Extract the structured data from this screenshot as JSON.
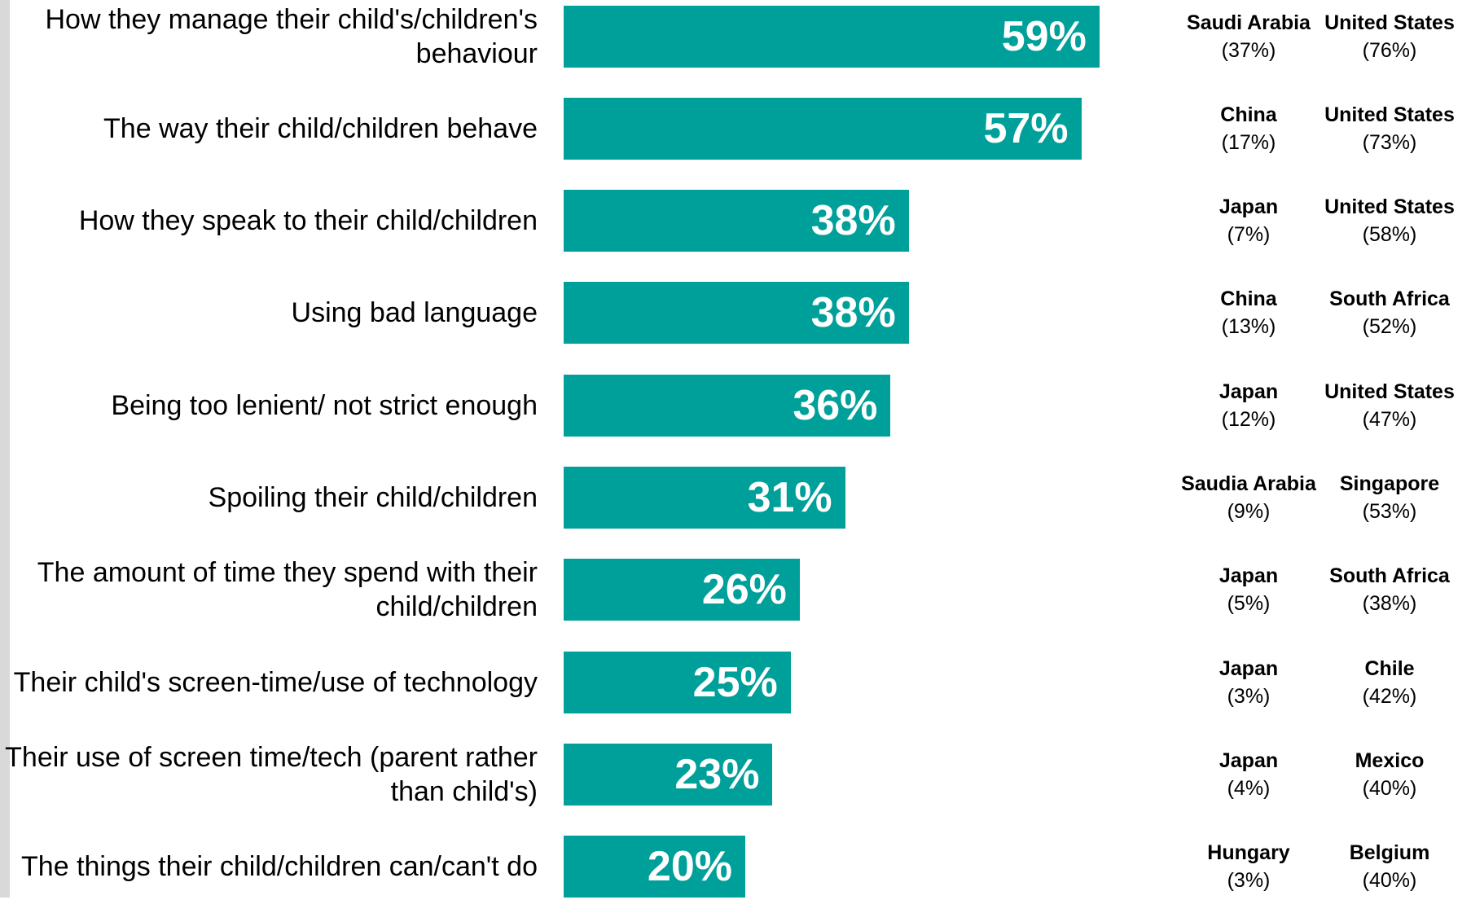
{
  "chart_data": {
    "type": "bar",
    "orientation": "horizontal",
    "xlim": [
      0,
      100
    ],
    "categories": [
      "How they manage their child's/children's behaviour",
      "The way their child/children behave",
      "How they speak to their child/children",
      "Using bad language",
      "Being too lenient/ not strict enough",
      "Spoiling their child/children",
      "The amount of time they spend with their child/children",
      "Their child's screen-time/use of technology",
      "Their use of screen time/tech (parent rather than child's)",
      "The things their child/children can/can't do"
    ],
    "values": [
      59,
      57,
      38,
      38,
      36,
      31,
      26,
      25,
      23,
      20
    ],
    "value_labels": [
      "59%",
      "57%",
      "38%",
      "38%",
      "36%",
      "31%",
      "26%",
      "25%",
      "23%",
      "20%"
    ],
    "bar_color": "#00a09a",
    "lowest_country": [
      {
        "name": "Saudi Arabia",
        "pct": "(37%)"
      },
      {
        "name": "China",
        "pct": "(17%)"
      },
      {
        "name": "Japan",
        "pct": "(7%)"
      },
      {
        "name": "China",
        "pct": "(13%)"
      },
      {
        "name": "Japan",
        "pct": "(12%)"
      },
      {
        "name": "Saudia Arabia",
        "pct": "(9%)"
      },
      {
        "name": "Japan",
        "pct": "(5%)"
      },
      {
        "name": "Japan",
        "pct": "(3%)"
      },
      {
        "name": "Japan",
        "pct": "(4%)"
      },
      {
        "name": "Hungary",
        "pct": "(3%)"
      }
    ],
    "highest_country": [
      {
        "name": "United States",
        "pct": "(76%)"
      },
      {
        "name": "United States",
        "pct": "(73%)"
      },
      {
        "name": "United States",
        "pct": "(58%)"
      },
      {
        "name": "South Africa",
        "pct": "(52%)"
      },
      {
        "name": "United States",
        "pct": "(47%)"
      },
      {
        "name": "Singapore",
        "pct": "(53%)"
      },
      {
        "name": "South Africa",
        "pct": "(38%)"
      },
      {
        "name": "Chile",
        "pct": "(42%)"
      },
      {
        "name": "Mexico",
        "pct": "(40%)"
      },
      {
        "name": "Belgium",
        "pct": "(40%)"
      }
    ]
  }
}
